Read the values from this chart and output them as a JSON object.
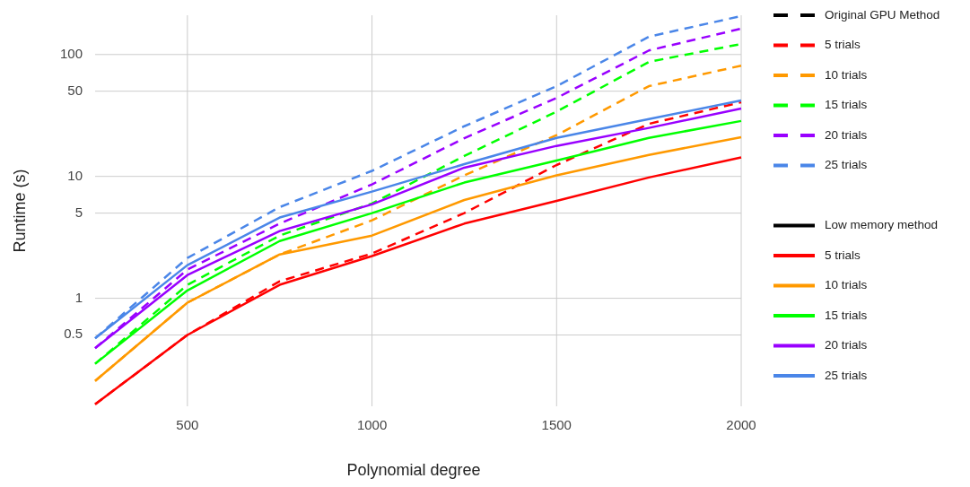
{
  "chart_data": {
    "type": "line",
    "xlabel": "Polynomial degree",
    "ylabel": "Runtime (s)",
    "x": [
      250,
      500,
      750,
      1000,
      1250,
      1500,
      1750,
      2000
    ],
    "xlim": [
      250,
      2000
    ],
    "xticks": [
      500,
      1000,
      1500,
      2000
    ],
    "ylim": [
      0.13,
      210
    ],
    "yticks": [
      0.5,
      1,
      5,
      10,
      50,
      100
    ],
    "log": true,
    "grid": true,
    "legend": "right",
    "series": [
      {
        "name": "Original GPU Method",
        "color": "#000000",
        "line_style": "dashed",
        "values": [
          null,
          null,
          null,
          null,
          null,
          null,
          null,
          null
        ]
      },
      {
        "name": "5 trials",
        "color": "#ff0000",
        "line_style": "dashed",
        "values": [
          0.135,
          0.5,
          1.38,
          2.33,
          5.0,
          12.4,
          27,
          40.6
        ]
      },
      {
        "name": "10 trials",
        "color": "#ff9900",
        "line_style": "dashed",
        "values": [
          0.21,
          0.92,
          2.29,
          4.36,
          10.2,
          21.8,
          55,
          81
        ]
      },
      {
        "name": "15 trials",
        "color": "#00ff00",
        "line_style": "dashed",
        "values": [
          0.29,
          1.29,
          3.27,
          6.0,
          14.7,
          34,
          87,
          122
        ]
      },
      {
        "name": "20 trials",
        "color": "#9900ff",
        "line_style": "dashed",
        "values": [
          0.39,
          1.72,
          4.1,
          8.6,
          20.6,
          44,
          108,
          163
        ]
      },
      {
        "name": "25 trials",
        "color": "#4a86e8",
        "line_style": "dashed",
        "values": [
          0.47,
          2.14,
          5.6,
          11.1,
          25.8,
          55,
          140,
          207
        ]
      },
      {
        "name": "Low memory method",
        "color": "#000000",
        "line_style": "solid",
        "values": [
          null,
          null,
          null,
          null,
          null,
          null,
          null,
          null
        ]
      },
      {
        "name": "5 trials",
        "color": "#ff0000",
        "line_style": "solid",
        "values": [
          0.135,
          0.5,
          1.29,
          2.22,
          4.1,
          6.3,
          9.8,
          14.3
        ]
      },
      {
        "name": "10 trials",
        "color": "#ff9900",
        "line_style": "solid",
        "values": [
          0.21,
          0.92,
          2.29,
          3.27,
          6.4,
          10.2,
          15,
          21
        ]
      },
      {
        "name": "15 trials",
        "color": "#00ff00",
        "line_style": "solid",
        "values": [
          0.29,
          1.16,
          2.95,
          5.0,
          8.9,
          13.5,
          20.7,
          28.5
        ]
      },
      {
        "name": "20 trials",
        "color": "#9900ff",
        "line_style": "solid",
        "values": [
          0.39,
          1.55,
          3.56,
          5.9,
          11.8,
          17.8,
          25,
          36
        ]
      },
      {
        "name": "25 trials",
        "color": "#4a86e8",
        "line_style": "solid",
        "values": [
          0.47,
          1.87,
          4.6,
          7.5,
          12.6,
          20.7,
          29.5,
          42
        ]
      }
    ]
  }
}
